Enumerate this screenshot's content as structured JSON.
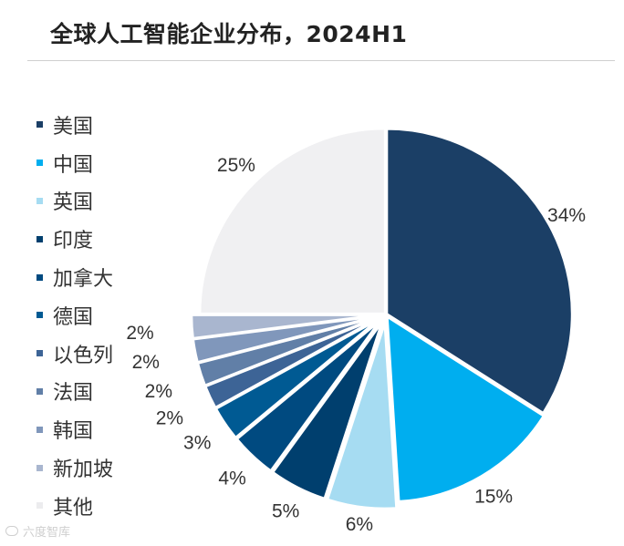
{
  "title": "全球人工智能企业分布，2024H1",
  "watermark": {
    "text": "六度智库"
  },
  "chart_data": {
    "type": "pie",
    "title": "全球人工智能企业分布，2024H1",
    "start_angle_deg": 0,
    "direction": "clockwise",
    "legend_position": "left",
    "slices": [
      {
        "name": "美国",
        "value": 34,
        "label": "34%",
        "color": "#1b3f66"
      },
      {
        "name": "中国",
        "value": 15,
        "label": "15%",
        "color": "#00aeef"
      },
      {
        "name": "英国",
        "value": 6,
        "label": "6%",
        "color": "#a6dcf2"
      },
      {
        "name": "印度",
        "value": 5,
        "label": "5%",
        "color": "#003f6e"
      },
      {
        "name": "加拿大",
        "value": 4,
        "label": "4%",
        "color": "#004a80"
      },
      {
        "name": "德国",
        "value": 3,
        "label": "3%",
        "color": "#005a93"
      },
      {
        "name": "以色列",
        "value": 2,
        "label": "2%",
        "color": "#3d6496"
      },
      {
        "name": "法国",
        "value": 2,
        "label": "2%",
        "color": "#617fa7"
      },
      {
        "name": "韩国",
        "value": 2,
        "label": "2%",
        "color": "#8097bb"
      },
      {
        "name": "新加坡",
        "value": 2,
        "label": "2%",
        "color": "#a9b6cf"
      },
      {
        "name": "其他",
        "value": 25,
        "label": "25%",
        "color": "#f0f0f2"
      }
    ]
  }
}
